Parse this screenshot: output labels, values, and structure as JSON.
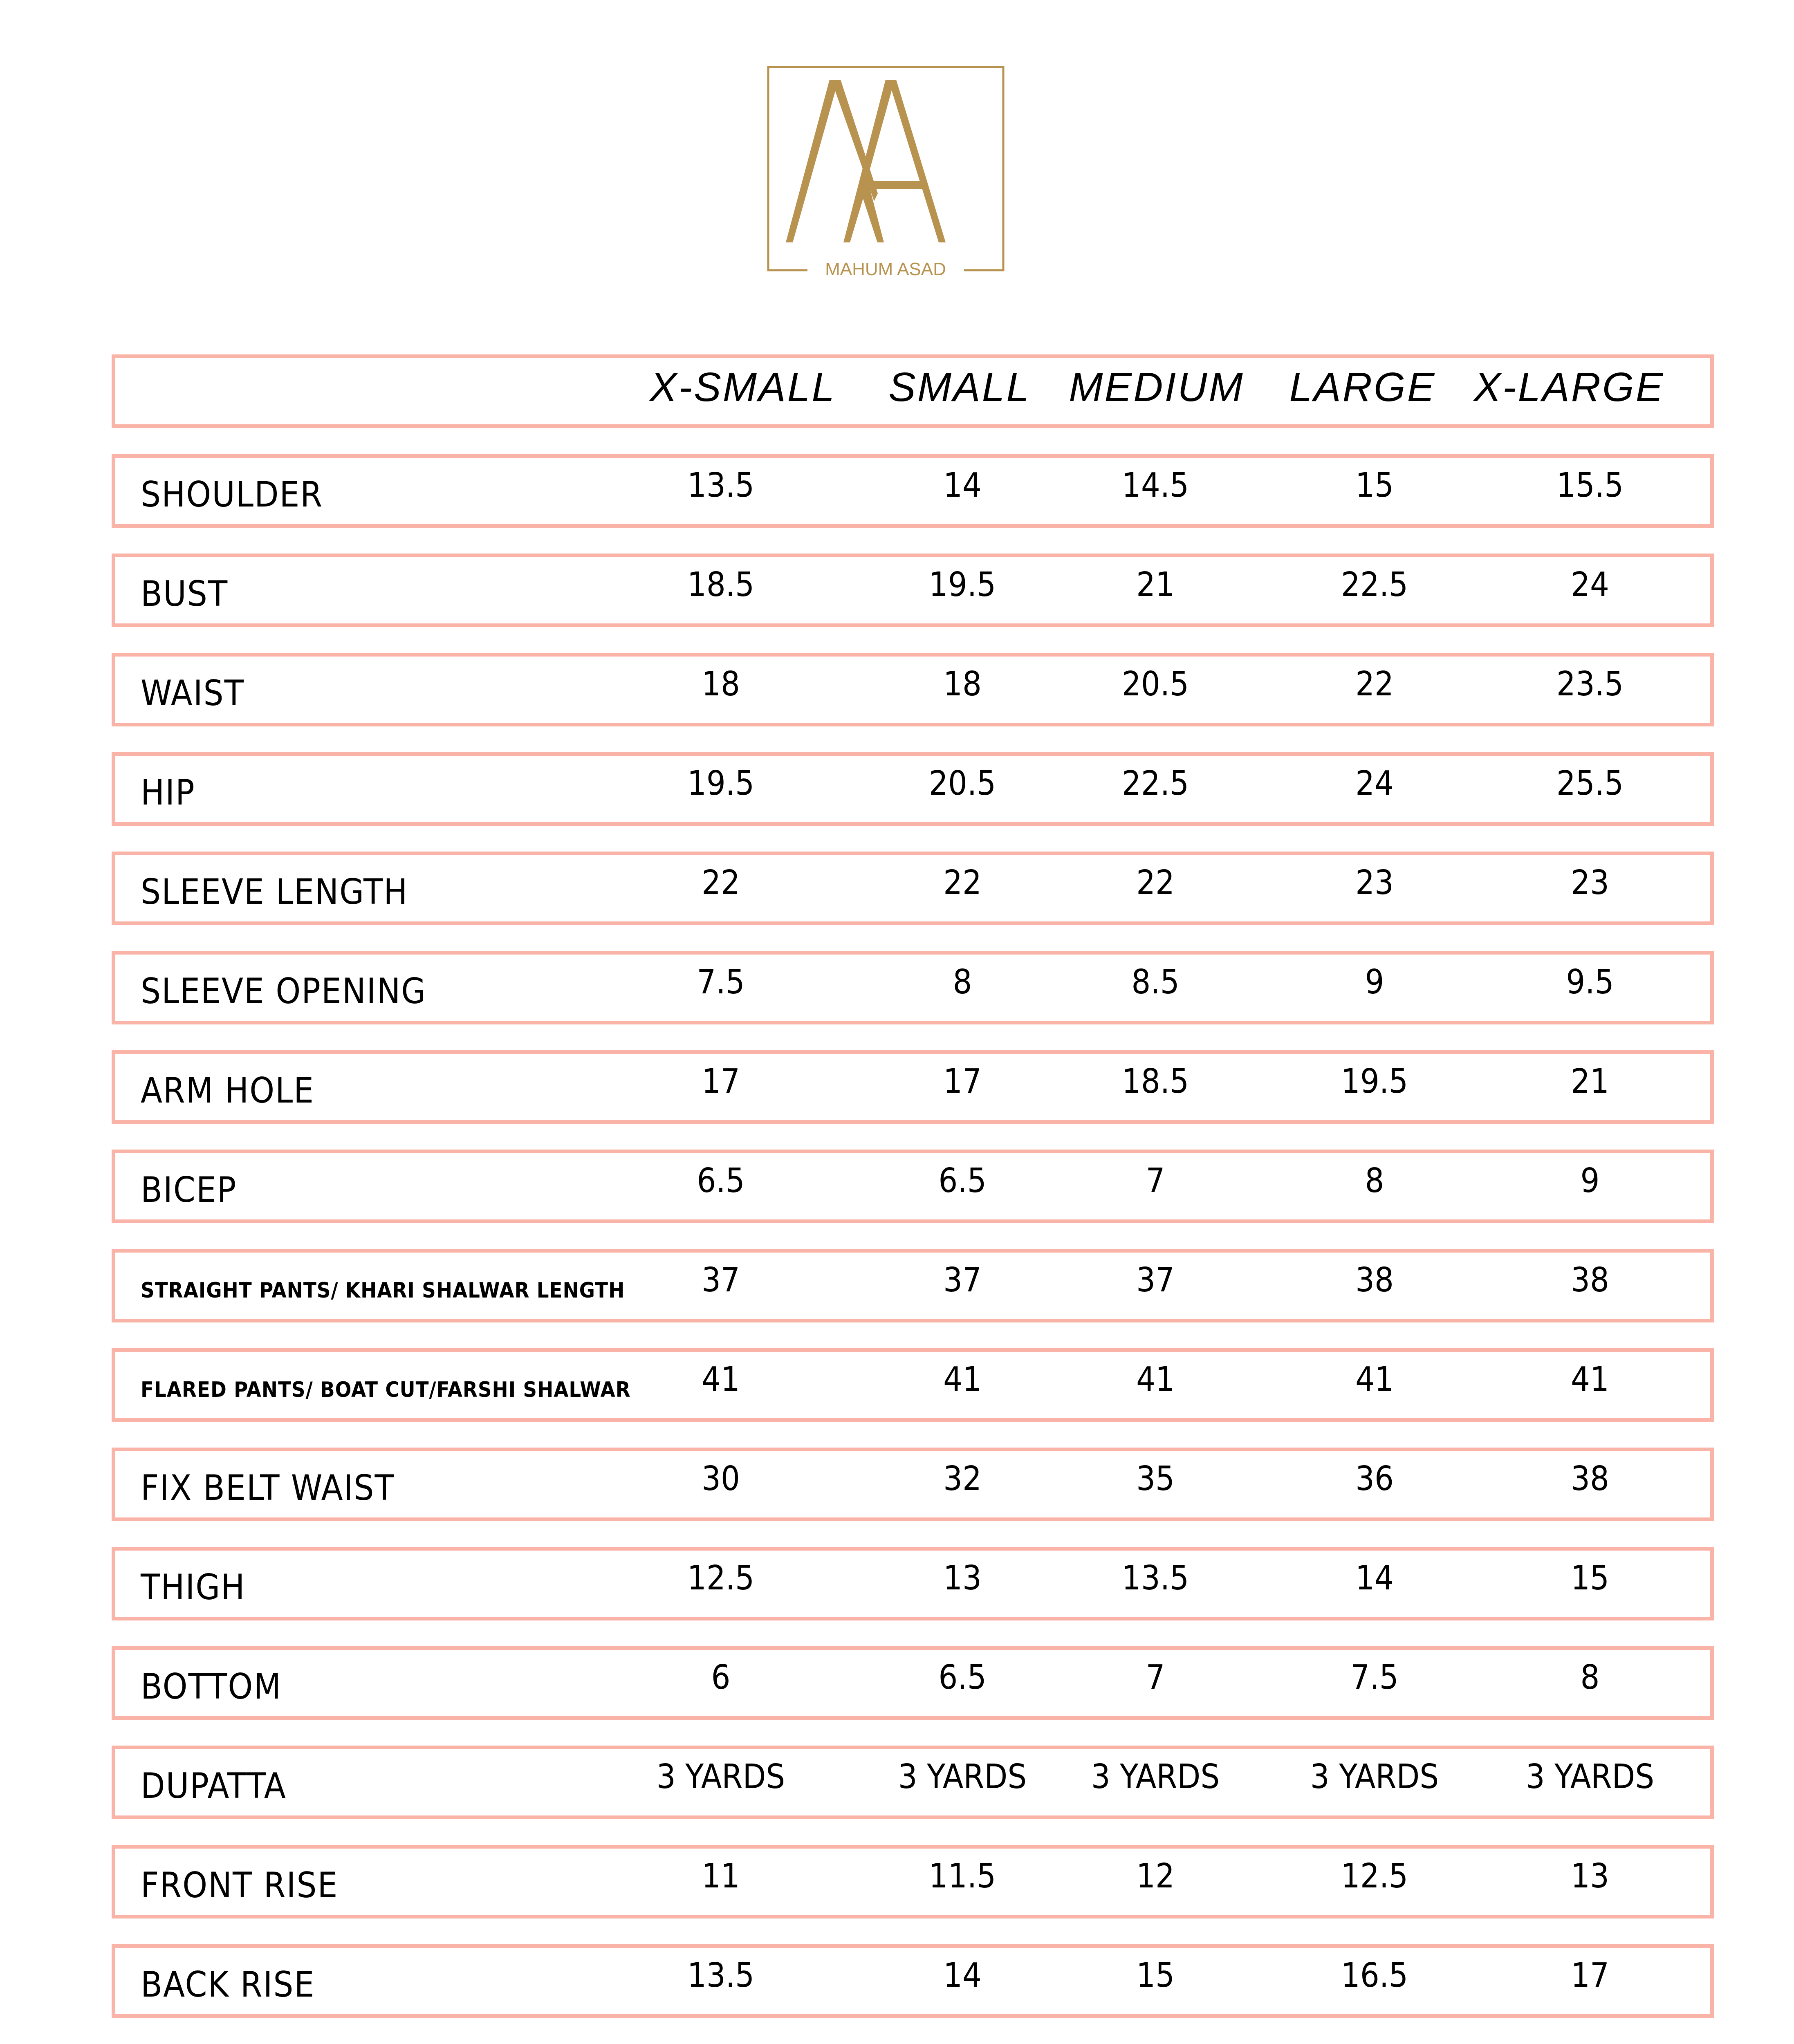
{
  "brand": {
    "logo_text": "MAHUM ASAD",
    "monogram": "MA",
    "color": "#b8924f"
  },
  "border_color": "#f9b3a7",
  "table": {
    "headers": [
      "X-SMALL",
      "SMALL",
      "MEDIUM",
      "LARGE",
      "X-LARGE"
    ],
    "rows": [
      {
        "label": "SHOULDER",
        "values": [
          "13.5",
          "14",
          "14.5",
          "15",
          "15.5"
        ]
      },
      {
        "label": "BUST",
        "values": [
          "18.5",
          "19.5",
          "21",
          "22.5",
          "24"
        ]
      },
      {
        "label": "WAIST",
        "values": [
          "18",
          "18",
          "20.5",
          "22",
          "23.5"
        ]
      },
      {
        "label": "HIP",
        "values": [
          "19.5",
          "20.5",
          "22.5",
          "24",
          "25.5"
        ]
      },
      {
        "label": "SLEEVE LENGTH",
        "values": [
          "22",
          "22",
          "22",
          "23",
          "23"
        ]
      },
      {
        "label": "SLEEVE OPENING",
        "values": [
          "7.5",
          "8",
          "8.5",
          "9",
          "9.5"
        ]
      },
      {
        "label": "ARM HOLE",
        "values": [
          "17",
          "17",
          "18.5",
          "19.5",
          "21"
        ]
      },
      {
        "label": "BICEP",
        "values": [
          "6.5",
          "6.5",
          "7",
          "8",
          "9"
        ]
      },
      {
        "label": "STRAIGHT PANTS/ KHARI SHALWAR LENGTH",
        "small": true,
        "values": [
          "37",
          "37",
          "37",
          "38",
          "38"
        ]
      },
      {
        "label": "FLARED PANTS/ BOAT CUT/FARSHI SHALWAR",
        "small": true,
        "values": [
          "41",
          "41",
          "41",
          "41",
          "41"
        ]
      },
      {
        "label": "FIX BELT WAIST",
        "values": [
          "30",
          "32",
          "35",
          "36",
          "38"
        ]
      },
      {
        "label": "THIGH",
        "values": [
          "12.5",
          "13",
          "13.5",
          "14",
          "15"
        ]
      },
      {
        "label": "BOTTOM",
        "values": [
          "6",
          "6.5",
          "7",
          "7.5",
          "8"
        ]
      },
      {
        "label": "DUPATTA",
        "values": [
          "3 YARDS",
          "3 YARDS",
          "3 YARDS",
          "3 YARDS",
          "3 YARDS"
        ]
      },
      {
        "label": "FRONT RISE",
        "values": [
          "11",
          "11.5",
          "12",
          "12.5",
          "13"
        ]
      },
      {
        "label": "BACK RISE",
        "values": [
          "13.5",
          "14",
          "15",
          "16.5",
          "17"
        ]
      }
    ]
  }
}
